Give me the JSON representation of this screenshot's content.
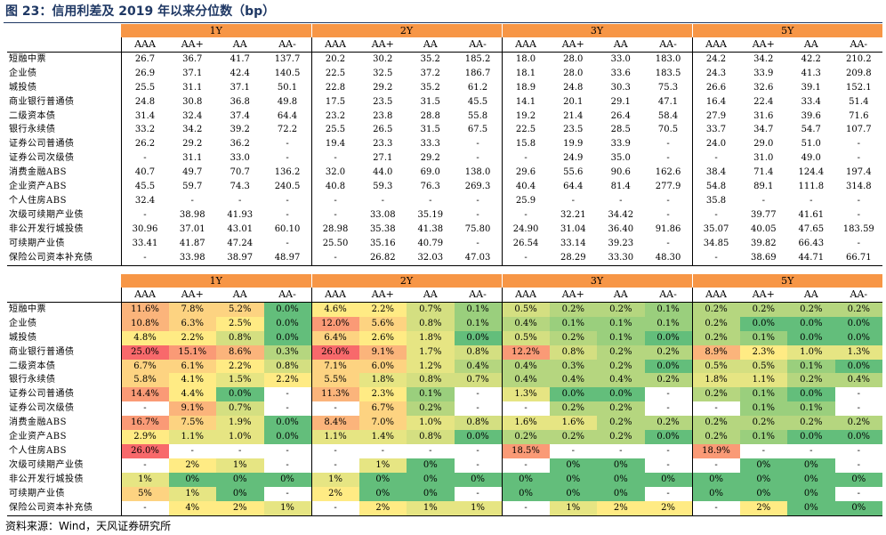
{
  "title": "图 23：信用利差及 2019 年以来分位数（bp）",
  "footer": "资料来源：Wind，天风证券研究所",
  "tenors": [
    "1Y",
    "2Y",
    "3Y",
    "5Y"
  ],
  "ratings": [
    "AAA",
    "AA+",
    "AA",
    "AA-"
  ],
  "spreads": {
    "rows": [
      {
        "label": "短融中票",
        "values": [
          "26.7",
          "36.7",
          "41.7",
          "137.7",
          "20.2",
          "30.2",
          "35.2",
          "185.2",
          "18.0",
          "28.0",
          "33.0",
          "183.0",
          "24.2",
          "34.2",
          "42.2",
          "210.2"
        ]
      },
      {
        "label": "企业债",
        "values": [
          "26.9",
          "37.1",
          "42.4",
          "140.5",
          "22.5",
          "32.5",
          "37.2",
          "186.7",
          "18.1",
          "28.0",
          "33.6",
          "183.5",
          "24.3",
          "33.9",
          "41.3",
          "209.8"
        ]
      },
      {
        "label": "城投债",
        "values": [
          "25.5",
          "31.1",
          "37.1",
          "50.1",
          "22.8",
          "29.2",
          "35.2",
          "61.2",
          "18.9",
          "24.8",
          "30.3",
          "75.3",
          "26.6",
          "32.6",
          "39.1",
          "152.1"
        ]
      },
      {
        "label": "商业银行普通债",
        "values": [
          "24.8",
          "30.8",
          "36.8",
          "49.8",
          "17.5",
          "23.5",
          "31.5",
          "45.5",
          "14.1",
          "20.1",
          "29.1",
          "47.1",
          "16.4",
          "22.4",
          "33.4",
          "51.4"
        ]
      },
      {
        "label": "二级资本债",
        "values": [
          "31.4",
          "32.4",
          "37.4",
          "64.4",
          "23.2",
          "23.8",
          "28.8",
          "55.8",
          "19.2",
          "21.4",
          "26.4",
          "58.4",
          "27.9",
          "31.6",
          "39.6",
          "71.6"
        ]
      },
      {
        "label": "银行永续债",
        "values": [
          "33.2",
          "34.2",
          "39.2",
          "72.2",
          "25.5",
          "26.5",
          "31.5",
          "67.5",
          "22.5",
          "23.5",
          "28.5",
          "70.5",
          "33.7",
          "34.7",
          "54.7",
          "107.7"
        ]
      },
      {
        "label": "证券公司普通债",
        "values": [
          "26.2",
          "29.2",
          "36.2",
          "-",
          "19.4",
          "23.3",
          "33.3",
          "-",
          "15.8",
          "19.9",
          "33.9",
          "-",
          "24.0",
          "29.0",
          "51.0",
          "-"
        ]
      },
      {
        "label": "证券公司次级债",
        "values": [
          "-",
          "31.1",
          "33.0",
          "-",
          "-",
          "27.1",
          "29.2",
          "-",
          "-",
          "24.9",
          "35.0",
          "-",
          "-",
          "31.0",
          "49.0",
          "-"
        ]
      },
      {
        "label": "消费金融ABS",
        "values": [
          "40.7",
          "49.7",
          "70.7",
          "136.2",
          "32.0",
          "44.0",
          "69.0",
          "138.0",
          "29.6",
          "55.6",
          "90.6",
          "162.6",
          "38.4",
          "71.4",
          "124.4",
          "197.4"
        ]
      },
      {
        "label": "企业资产ABS",
        "values": [
          "45.5",
          "59.7",
          "74.3",
          "240.5",
          "40.8",
          "59.3",
          "76.3",
          "269.3",
          "40.4",
          "64.4",
          "81.4",
          "277.9",
          "54.8",
          "89.1",
          "111.8",
          "314.8"
        ]
      },
      {
        "label": "个人住房ABS",
        "values": [
          "32.4",
          "-",
          "-",
          "-",
          "-",
          "-",
          "-",
          "-",
          "25.9",
          "-",
          "-",
          "-",
          "35.8",
          "-",
          "-",
          "-"
        ]
      },
      {
        "label": "次级可续期产业债",
        "values": [
          "-",
          "38.98",
          "41.93",
          "-",
          "-",
          "33.08",
          "35.19",
          "-",
          "-",
          "32.21",
          "34.42",
          "-",
          "-",
          "39.77",
          "41.61",
          "-"
        ]
      },
      {
        "label": "非公开发行城投债",
        "values": [
          "30.96",
          "37.01",
          "43.01",
          "60.10",
          "28.98",
          "35.38",
          "41.38",
          "75.80",
          "24.90",
          "31.04",
          "36.40",
          "91.86",
          "35.07",
          "40.05",
          "47.65",
          "183.59"
        ]
      },
      {
        "label": "可续期产业债",
        "values": [
          "33.41",
          "41.87",
          "47.24",
          "-",
          "25.50",
          "35.16",
          "40.79",
          "-",
          "26.54",
          "33.14",
          "39.23",
          "-",
          "34.85",
          "39.82",
          "66.43",
          "-"
        ]
      },
      {
        "label": "保险公司资本补充债",
        "values": [
          "-",
          "33.98",
          "38.97",
          "48.97",
          "-",
          "26.82",
          "32.03",
          "47.03",
          "-",
          "28.29",
          "33.30",
          "48.30",
          "-",
          "38.69",
          "44.71",
          "66.71"
        ]
      }
    ]
  },
  "percentiles": {
    "rows": [
      {
        "label": "短融中票",
        "values": [
          "11.6%",
          "7.8%",
          "5.2%",
          "0.0%",
          "4.6%",
          "2.2%",
          "0.7%",
          "0.1%",
          "0.5%",
          "0.2%",
          "0.2%",
          "0.1%",
          "0.2%",
          "0.2%",
          "0.2%",
          "0.2%"
        ]
      },
      {
        "label": "企业债",
        "values": [
          "10.8%",
          "6.3%",
          "2.5%",
          "0.0%",
          "12.0%",
          "5.6%",
          "0.8%",
          "0.1%",
          "0.4%",
          "0.1%",
          "0.1%",
          "0.1%",
          "0.2%",
          "0.0%",
          "0.0%",
          "0.0%"
        ]
      },
      {
        "label": "城投债",
        "values": [
          "4.8%",
          "2.2%",
          "0.8%",
          "0.0%",
          "6.4%",
          "2.6%",
          "1.8%",
          "0.0%",
          "0.5%",
          "0.2%",
          "0.1%",
          "0.0%",
          "0.2%",
          "0.1%",
          "0.0%",
          "0.0%"
        ]
      },
      {
        "label": "商业银行普通债",
        "values": [
          "25.0%",
          "15.1%",
          "8.6%",
          "0.3%",
          "26.0%",
          "9.1%",
          "1.7%",
          "0.8%",
          "12.2%",
          "0.8%",
          "0.2%",
          "0.2%",
          "8.9%",
          "2.3%",
          "1.0%",
          "1.3%"
        ]
      },
      {
        "label": "二级资本债",
        "values": [
          "6.7%",
          "6.1%",
          "2.2%",
          "0.8%",
          "7.1%",
          "6.0%",
          "1.2%",
          "0.4%",
          "0.4%",
          "0.3%",
          "0.2%",
          "0.0%",
          "0.5%",
          "0.5%",
          "0.1%",
          "0.0%"
        ]
      },
      {
        "label": "银行永续债",
        "values": [
          "5.8%",
          "4.1%",
          "1.5%",
          "2.2%",
          "5.5%",
          "1.8%",
          "0.8%",
          "0.7%",
          "0.4%",
          "0.4%",
          "0.4%",
          "0.2%",
          "1.8%",
          "1.1%",
          "0.2%",
          "0.4%"
        ]
      },
      {
        "label": "证券公司普通债",
        "values": [
          "14.4%",
          "4.4%",
          "0.0%",
          "-",
          "11.3%",
          "2.3%",
          "0.1%",
          "-",
          "1.3%",
          "0.0%",
          "0.0%",
          "-",
          "0.2%",
          "0.1%",
          "0.0%",
          "-"
        ]
      },
      {
        "label": "证券公司次级债",
        "values": [
          "-",
          "9.1%",
          "0.7%",
          "-",
          "-",
          "6.7%",
          "0.2%",
          "-",
          "-",
          "0.2%",
          "0.2%",
          "-",
          "-",
          "0.1%",
          "0.1%",
          "-"
        ]
      },
      {
        "label": "消费金融ABS",
        "values": [
          "16.7%",
          "7.5%",
          "1.9%",
          "0.0%",
          "8.4%",
          "7.0%",
          "1.0%",
          "0.8%",
          "1.6%",
          "1.6%",
          "0.2%",
          "0.2%",
          "0.2%",
          "0.2%",
          "0.2%",
          "0.2%"
        ]
      },
      {
        "label": "企业资产ABS",
        "values": [
          "2.9%",
          "1.1%",
          "1.0%",
          "0.0%",
          "1.1%",
          "1.4%",
          "0.8%",
          "0.0%",
          "0.2%",
          "0.2%",
          "0.2%",
          "0.0%",
          "0.2%",
          "0.1%",
          "0.0%",
          "0.0%"
        ]
      },
      {
        "label": "个人住房ABS",
        "values": [
          "26.0%",
          "-",
          "-",
          "-",
          "-",
          "-",
          "-",
          "-",
          "18.5%",
          "-",
          "-",
          "-",
          "18.9%",
          "-",
          "-",
          "-"
        ]
      },
      {
        "label": "次级可续期产业债",
        "values": [
          "-",
          "2%",
          "1%",
          "-",
          "-",
          "1%",
          "0%",
          "-",
          "-",
          "0%",
          "0%",
          "-",
          "-",
          "0%",
          "0%",
          "-"
        ]
      },
      {
        "label": "非公开发行城投债",
        "values": [
          "1%",
          "0%",
          "0%",
          "0%",
          "1%",
          "0%",
          "0%",
          "0%",
          "0%",
          "0%",
          "0%",
          "0%",
          "0%",
          "0%",
          "0%",
          "0%"
        ]
      },
      {
        "label": "可续期产业债",
        "values": [
          "5%",
          "1%",
          "0%",
          "-",
          "2%",
          "0%",
          "0%",
          "-",
          "0%",
          "0%",
          "0%",
          "-",
          "0%",
          "0%",
          "0%",
          "-"
        ]
      },
      {
        "label": "保险公司资本补充债",
        "values": [
          "-",
          "4%",
          "2%",
          "1%",
          "-",
          "2%",
          "1%",
          "1%",
          "-",
          "1%",
          "2%",
          "2%",
          "-",
          "2%",
          "0%",
          "0%"
        ]
      }
    ]
  }
}
